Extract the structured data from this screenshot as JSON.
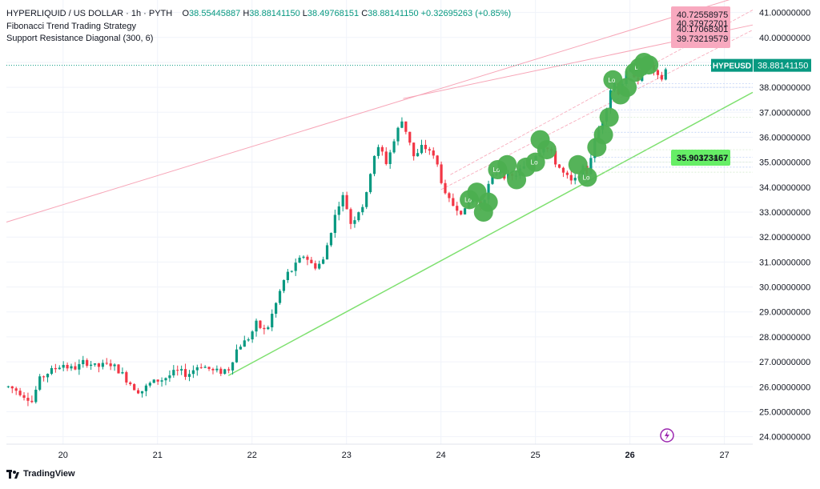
{
  "header": {
    "symbol_line": "HYPERLIQUID / US DOLLAR · 1h · PYTH",
    "ohlc": {
      "o_label": "O",
      "o": "38.55445887",
      "h_label": "H",
      "h": "38.88141150",
      "l_label": "L",
      "l": "38.49768151",
      "c_label": "C",
      "c": "38.88141150",
      "change": "+0.32695263 (+0.85%)"
    },
    "indicator1": "Fibonacci Trend Trading Strategy",
    "indicator2": "Support Resistance Diagonal (300, 6)"
  },
  "branding": "TradingView",
  "colors": {
    "up": "#089981",
    "down": "#f23645",
    "fib_marker": "#4caf50",
    "resistance": "#f7a5b7",
    "support": "#7ee06f",
    "price_label_bg": "#089981",
    "fib_label_bg": "#f8a9bf",
    "support_label_bg": "#66ee66"
  },
  "chart_data": {
    "type": "candlestick",
    "symbol_tag": "HYPEUSD",
    "last_price": "38.88141150",
    "y_ticks": [
      "24.00000000",
      "25.00000000",
      "26.00000000",
      "27.00000000",
      "28.00000000",
      "29.00000000",
      "30.00000000",
      "31.00000000",
      "32.00000000",
      "33.00000000",
      "34.00000000",
      "35.00000000",
      "36.00000000",
      "37.00000000",
      "38.00000000",
      "39.00000000",
      "40.00000000",
      "41.00000000"
    ],
    "ylim": [
      23.7,
      41.5
    ],
    "x_ticks": [
      "20",
      "21",
      "22",
      "23",
      "24",
      "25",
      "26",
      "27"
    ],
    "x_bold_tick": "26",
    "xlim": [
      19.4,
      27.3
    ],
    "close_path": [
      [
        19.42,
        26.0
      ],
      [
        19.55,
        25.8
      ],
      [
        19.67,
        25.4
      ],
      [
        19.75,
        26.3
      ],
      [
        19.85,
        26.6
      ],
      [
        20.0,
        26.9
      ],
      [
        20.1,
        26.7
      ],
      [
        20.25,
        27.0
      ],
      [
        20.35,
        26.8
      ],
      [
        20.5,
        26.9
      ],
      [
        20.6,
        26.6
      ],
      [
        20.72,
        26.1
      ],
      [
        20.82,
        25.8
      ],
      [
        20.95,
        26.2
      ],
      [
        21.05,
        26.3
      ],
      [
        21.2,
        26.6
      ],
      [
        21.32,
        26.5
      ],
      [
        21.45,
        26.9
      ],
      [
        21.6,
        26.6
      ],
      [
        21.75,
        26.7
      ],
      [
        21.85,
        27.6
      ],
      [
        21.95,
        27.9
      ],
      [
        22.05,
        28.5
      ],
      [
        22.15,
        28.2
      ],
      [
        22.25,
        29.3
      ],
      [
        22.35,
        30.4
      ],
      [
        22.45,
        30.8
      ],
      [
        22.55,
        31.3
      ],
      [
        22.65,
        30.8
      ],
      [
        22.75,
        31.0
      ],
      [
        22.85,
        32.5
      ],
      [
        22.95,
        33.7
      ],
      [
        23.0,
        33.2
      ],
      [
        23.05,
        32.5
      ],
      [
        23.1,
        32.9
      ],
      [
        23.2,
        33.4
      ],
      [
        23.28,
        35.2
      ],
      [
        23.35,
        35.6
      ],
      [
        23.42,
        35.0
      ],
      [
        23.5,
        35.8
      ],
      [
        23.58,
        36.7
      ],
      [
        23.66,
        36.0
      ],
      [
        23.72,
        35.1
      ],
      [
        23.8,
        35.6
      ],
      [
        23.88,
        35.5
      ],
      [
        23.96,
        34.9
      ],
      [
        24.05,
        33.6
      ],
      [
        24.15,
        33.2
      ],
      [
        24.25,
        33.0
      ],
      [
        24.32,
        33.6
      ],
      [
        24.42,
        33.3
      ],
      [
        24.52,
        34.2
      ],
      [
        24.62,
        34.8
      ],
      [
        24.72,
        34.3
      ],
      [
        24.82,
        34.6
      ],
      [
        24.92,
        34.9
      ],
      [
        25.02,
        35.4
      ],
      [
        25.1,
        35.7
      ],
      [
        25.2,
        35.1
      ],
      [
        25.3,
        34.5
      ],
      [
        25.4,
        34.1
      ],
      [
        25.47,
        34.7
      ],
      [
        25.55,
        34.6
      ],
      [
        25.62,
        35.8
      ],
      [
        25.7,
        36.6
      ],
      [
        25.76,
        37.4
      ],
      [
        25.82,
        38.3
      ],
      [
        25.88,
        37.8
      ],
      [
        25.95,
        38.5
      ],
      [
        26.02,
        38.7
      ],
      [
        26.1,
        38.3
      ],
      [
        26.18,
        39.0
      ],
      [
        26.25,
        38.6
      ],
      [
        26.32,
        38.2
      ],
      [
        26.4,
        38.88
      ]
    ],
    "fib_markers": [
      [
        24.3,
        33.5
      ],
      [
        24.38,
        33.8
      ],
      [
        24.45,
        33.0
      ],
      [
        24.5,
        33.4
      ],
      [
        24.6,
        34.7
      ],
      [
        24.7,
        34.9
      ],
      [
        24.8,
        34.3
      ],
      [
        24.9,
        34.8
      ],
      [
        25.0,
        35.0
      ],
      [
        25.05,
        35.9
      ],
      [
        25.12,
        35.5
      ],
      [
        25.45,
        34.9
      ],
      [
        25.55,
        34.4
      ],
      [
        25.65,
        35.6
      ],
      [
        25.72,
        36.1
      ],
      [
        25.78,
        36.8
      ],
      [
        25.82,
        38.3
      ],
      [
        25.9,
        37.7
      ],
      [
        25.97,
        38.0
      ],
      [
        26.05,
        38.6
      ],
      [
        26.1,
        38.8
      ],
      [
        26.15,
        39.0
      ],
      [
        26.2,
        38.9
      ]
    ],
    "marker_text": "Lo",
    "resistance_lines": [
      {
        "x1": 19.4,
        "y1": 32.6,
        "x2": 27.3,
        "y2": 41.8
      },
      {
        "x1": 23.6,
        "y1": 37.55,
        "x2": 27.3,
        "y2": 40.5
      }
    ],
    "support_line": {
      "x1": 21.75,
      "y1": 26.45,
      "x2": 27.3,
      "y2": 37.8
    },
    "fib_ladder": [
      {
        "x1": 24.1,
        "y1": 34.5,
        "x2": 27.3,
        "y2": 41.1
      },
      {
        "x1": 24.0,
        "y1": 33.9,
        "x2": 27.3,
        "y2": 40.3
      }
    ],
    "upper_labels": [
      "40.72558975",
      "40.37972701",
      "40.17068301",
      "39.73219579"
    ],
    "support_labels": [
      "35.90373167",
      "35.90123457"
    ],
    "price_dotted_level": 38.8814115
  }
}
